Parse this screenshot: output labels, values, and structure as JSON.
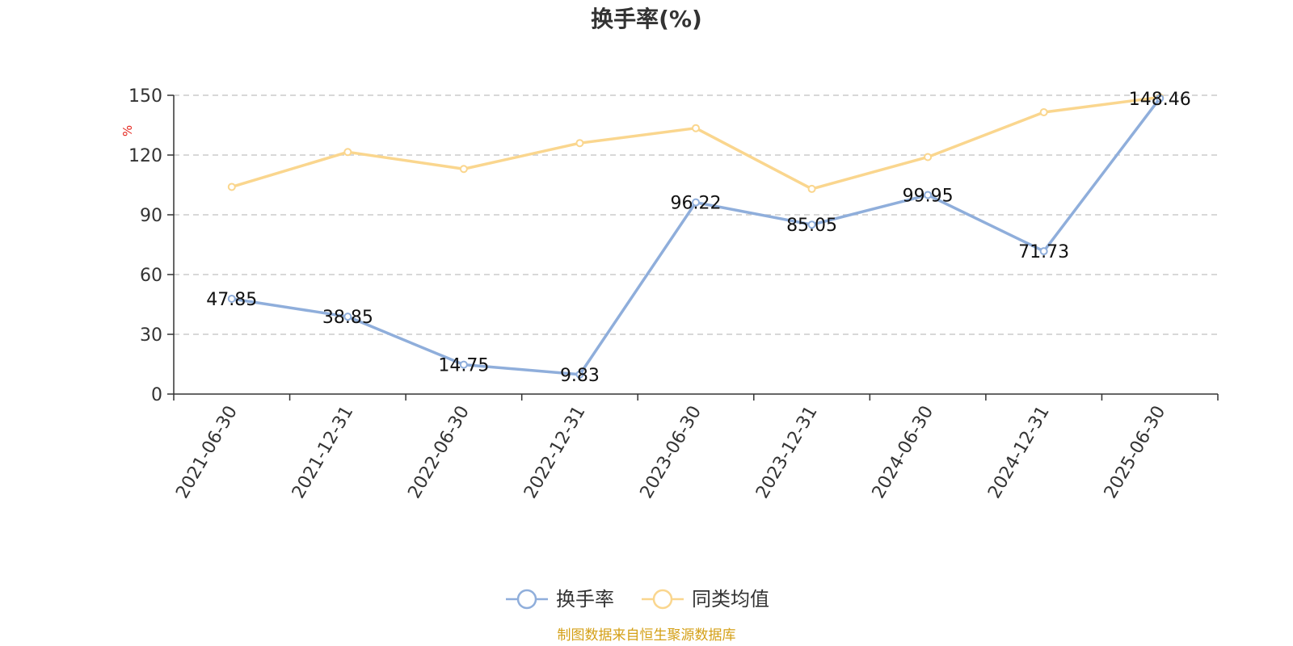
{
  "chart_data": {
    "type": "line",
    "title": "换手率(%)",
    "ylabel": "%",
    "ylim": [
      0,
      150
    ],
    "yticks": [
      0,
      30,
      60,
      90,
      120,
      150
    ],
    "grid": true,
    "legend_position": "bottom",
    "categories": [
      "2021-06-30",
      "2021-12-31",
      "2022-06-30",
      "2022-12-31",
      "2023-06-30",
      "2023-12-31",
      "2024-06-30",
      "2024-12-31",
      "2025-06-30"
    ],
    "series": [
      {
        "name": "换手率",
        "color": "#8FAEDB",
        "values": [
          47.85,
          38.85,
          14.75,
          9.83,
          96.22,
          85.05,
          99.95,
          71.73,
          148.46
        ],
        "labels": [
          "47.85",
          "38.85",
          "14.75",
          "9.83",
          "96.22",
          "85.05",
          "99.95",
          "71.73",
          "148.46"
        ]
      },
      {
        "name": "同类均值",
        "color": "#FAD68E",
        "values": [
          104,
          121.5,
          113,
          126,
          133.5,
          103,
          119,
          141.5,
          149
        ]
      }
    ]
  },
  "colors": {
    "axis": "#333333",
    "grid": "#cccccc",
    "unit": "#e5261e",
    "source": "#d4a017"
  },
  "source_note": "制图数据来自恒生聚源数据库"
}
